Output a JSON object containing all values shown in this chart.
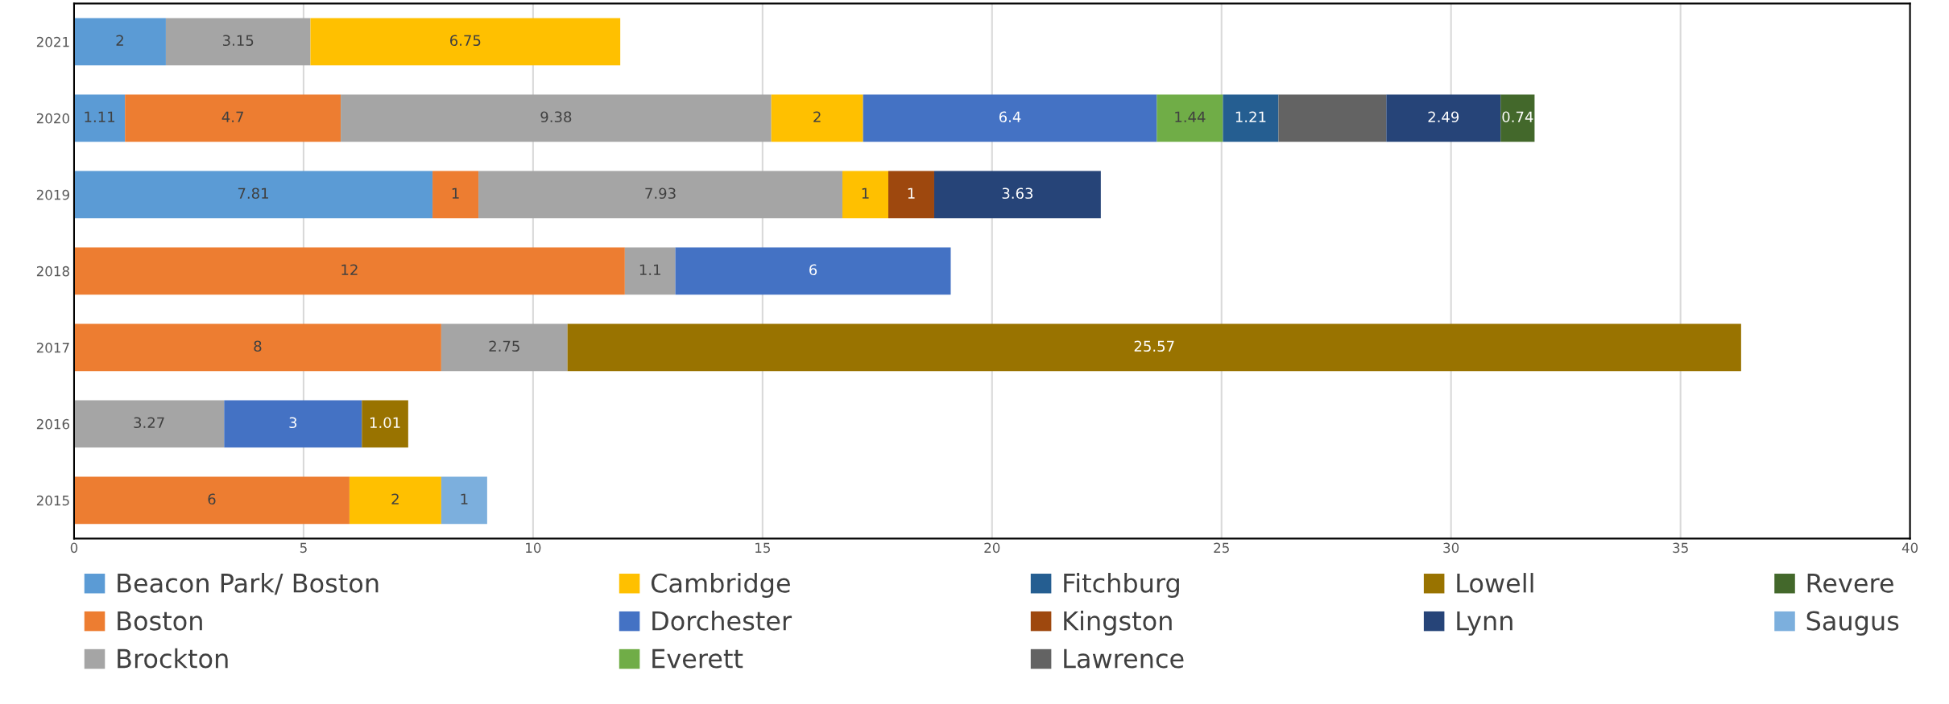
{
  "chart_data": {
    "type": "bar",
    "orientation": "horizontal",
    "stacked": true,
    "categories": [
      "2021",
      "2020",
      "2019",
      "2018",
      "2017",
      "2016",
      "2015"
    ],
    "series": [
      {
        "name": "Beacon Park/ Boston",
        "color": "#5b9bd5",
        "values": [
          2,
          1.11,
          7.81,
          null,
          null,
          null,
          null
        ],
        "value_labels": [
          "2",
          "1.11",
          "7.81",
          null,
          null,
          null,
          null
        ]
      },
      {
        "name": "Boston",
        "color": "#ed7d31",
        "values": [
          null,
          4.7,
          1,
          12,
          8,
          null,
          6
        ],
        "value_labels": [
          null,
          "4.7",
          "1",
          "12",
          "8",
          null,
          "6"
        ]
      },
      {
        "name": "Brockton",
        "color": "#a5a5a5",
        "values": [
          3.15,
          9.38,
          7.93,
          1.1,
          2.75,
          3.27,
          null
        ],
        "value_labels": [
          "3.15",
          "9.38",
          "7.93",
          "1.1",
          "2.75",
          "3.27",
          null
        ]
      },
      {
        "name": "Cambridge",
        "color": "#ffc000",
        "values": [
          6.75,
          2,
          1,
          null,
          null,
          null,
          2
        ],
        "value_labels": [
          "6.75",
          "2",
          "1",
          null,
          null,
          null,
          "2"
        ]
      },
      {
        "name": "Dorchester",
        "color": "#4472c4",
        "values": [
          null,
          6.4,
          null,
          6,
          null,
          3,
          null
        ],
        "value_labels": [
          null,
          "6.4",
          null,
          "6",
          null,
          "3",
          null
        ]
      },
      {
        "name": "Everett",
        "color": "#70ad47",
        "values": [
          null,
          1.44,
          null,
          null,
          null,
          null,
          null
        ],
        "value_labels": [
          null,
          "1.44",
          null,
          null,
          null,
          null,
          null
        ]
      },
      {
        "name": "Fitchburg",
        "color": "#255e91",
        "values": [
          null,
          1.21,
          null,
          null,
          null,
          null,
          null
        ],
        "value_labels": [
          null,
          "1.21",
          null,
          null,
          null,
          null,
          null
        ]
      },
      {
        "name": "Kingston",
        "color": "#9e480e",
        "values": [
          null,
          null,
          1,
          null,
          null,
          null,
          null
        ],
        "value_labels": [
          null,
          null,
          "1",
          null,
          null,
          null,
          null
        ]
      },
      {
        "name": "Lawrence",
        "color": "#636363",
        "values": [
          null,
          2.35,
          null,
          null,
          null,
          null,
          null
        ],
        "value_labels": [
          null,
          null,
          null,
          null,
          null,
          null,
          null
        ]
      },
      {
        "name": "Lowell",
        "color": "#997300",
        "values": [
          null,
          null,
          null,
          null,
          25.57,
          1.01,
          null
        ],
        "value_labels": [
          null,
          null,
          null,
          null,
          "25.57",
          "1.01",
          null
        ]
      },
      {
        "name": "Lynn",
        "color": "#264478",
        "values": [
          null,
          2.49,
          3.63,
          null,
          null,
          null,
          null
        ],
        "value_labels": [
          null,
          "2.49",
          "3.63",
          null,
          null,
          null,
          null
        ]
      },
      {
        "name": "Revere",
        "color": "#43682b",
        "values": [
          null,
          0.74,
          null,
          null,
          null,
          null,
          null
        ],
        "value_labels": [
          null,
          "0.74",
          null,
          null,
          null,
          null,
          null
        ]
      },
      {
        "name": "Saugus",
        "color": "#7cafdd",
        "values": [
          null,
          null,
          null,
          null,
          null,
          null,
          1
        ],
        "value_labels": [
          null,
          null,
          null,
          null,
          null,
          null,
          "1"
        ]
      }
    ],
    "xlim": [
      0,
      40
    ],
    "xticks": [
      0,
      5,
      10,
      15,
      20,
      25,
      30,
      35,
      40
    ],
    "grid": "x",
    "legend": "bottom"
  }
}
